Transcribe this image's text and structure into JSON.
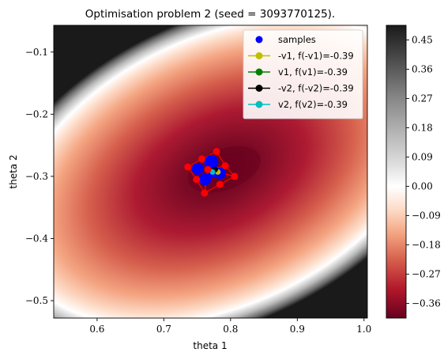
{
  "chart_data": {
    "type": "heatmap",
    "title": "Optimisation problem 2 (seed = 3093770125).",
    "xlabel": "theta 1",
    "ylabel": "theta 2",
    "xlim": [
      0.535,
      1.005
    ],
    "ylim": [
      -0.528,
      -0.057
    ],
    "x_ticks": [
      0.6,
      0.7,
      0.8,
      0.9,
      1.0
    ],
    "x_tick_labels": [
      "0.6",
      "0.7",
      "0.8",
      "0.9",
      "1.0"
    ],
    "y_ticks": [
      -0.1,
      -0.2,
      -0.3,
      -0.4,
      -0.5
    ],
    "y_tick_labels": [
      "−0.1",
      "−0.2",
      "−0.3",
      "−0.4",
      "−0.5"
    ],
    "colorbar": {
      "colormap": "RdGy",
      "range": [
        -0.405,
        0.495
      ],
      "ticks": [
        0.45,
        0.36,
        0.27,
        0.18,
        0.09,
        0.0,
        -0.09,
        -0.18,
        -0.27,
        -0.36
      ],
      "tick_labels": [
        "0.45",
        "0.36",
        "0.27",
        "0.18",
        "0.09",
        "0.00",
        "−0.09",
        "−0.18",
        "−0.27",
        "−0.36"
      ]
    },
    "surface": {
      "center": [
        0.78,
        -0.292
      ],
      "min_value": -0.39
    },
    "legend_position": "upper right",
    "legend": [
      {
        "label": "samples",
        "color": "#0000ff",
        "style": "marker"
      },
      {
        "label": "-v1, f(-v1)=-0.39",
        "color": "#bfbf00",
        "style": "line-marker"
      },
      {
        "label": "v1, f(v1)=-0.39",
        "color": "#008000",
        "style": "line-marker"
      },
      {
        "label": "-v2, f(-v2)=-0.39",
        "color": "#000000",
        "style": "line-marker"
      },
      {
        "label": "v2, f(v2)=-0.39",
        "color": "#00bfbf",
        "style": "line-marker"
      }
    ],
    "samples_blue": [
      {
        "x": 0.771,
        "y": -0.277,
        "r": 3
      },
      {
        "x": 0.751,
        "y": -0.288,
        "r": 2
      },
      {
        "x": 0.784,
        "y": -0.295,
        "r": 2
      },
      {
        "x": 0.762,
        "y": -0.305,
        "r": 2
      },
      {
        "x": 0.774,
        "y": -0.293,
        "r": 2
      }
    ],
    "samples_red": [
      {
        "x": 0.736,
        "y": -0.285
      },
      {
        "x": 0.757,
        "y": -0.272
      },
      {
        "x": 0.779,
        "y": -0.26
      },
      {
        "x": 0.792,
        "y": -0.283
      },
      {
        "x": 0.806,
        "y": -0.3
      },
      {
        "x": 0.784,
        "y": -0.313
      },
      {
        "x": 0.761,
        "y": -0.327
      },
      {
        "x": 0.749,
        "y": -0.305
      },
      {
        "x": 0.766,
        "y": -0.289
      }
    ],
    "direction_vectors": [
      {
        "name": "-v1",
        "color": "#bfbf00",
        "to": [
          0.781,
          -0.293
        ]
      },
      {
        "name": "v1",
        "color": "#008000",
        "to": [
          0.775,
          -0.291
        ]
      },
      {
        "name": "-v2",
        "color": "#000000",
        "to": [
          0.777,
          -0.289
        ]
      },
      {
        "name": "v2",
        "color": "#00bfbf",
        "to": [
          0.773,
          -0.293
        ]
      }
    ],
    "origin_point": [
      0.774,
      -0.292
    ]
  }
}
